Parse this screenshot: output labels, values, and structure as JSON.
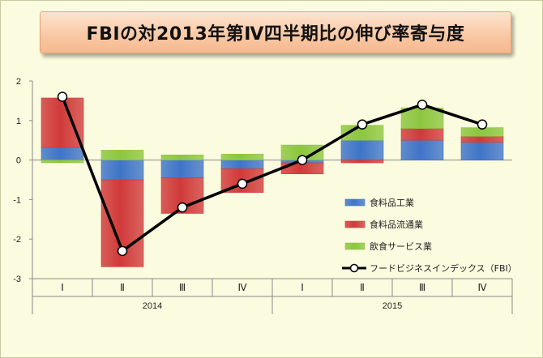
{
  "title": "FBIの対2013年第Ⅳ四半期比の伸び率寄与度",
  "colors": {
    "background": "#fbfbdf",
    "manufacturing": "#3f74c8",
    "distribution": "#d03a3a",
    "food_service": "#8cc63f",
    "line": "#000000"
  },
  "chart_data": {
    "type": "bar",
    "stacked": true,
    "title": "FBIの対2013年第Ⅳ四半期比の伸び率寄与度",
    "categories": [
      "Ⅰ",
      "Ⅱ",
      "Ⅲ",
      "Ⅳ",
      "Ⅰ",
      "Ⅱ",
      "Ⅲ",
      "Ⅳ"
    ],
    "year_groups": [
      {
        "label": "2014",
        "span": 4
      },
      {
        "label": "2015",
        "span": 4
      }
    ],
    "ylim": [
      -3,
      2
    ],
    "yticks": [
      2,
      1,
      0,
      -1,
      -2,
      -3
    ],
    "grid": false,
    "legend_position": "bottom-right",
    "series": [
      {
        "name": "食料品工業",
        "type": "bar",
        "values": [
          0.32,
          -0.5,
          -0.45,
          -0.22,
          -0.07,
          0.5,
          0.5,
          0.45
        ]
      },
      {
        "name": "食料品流通業",
        "type": "bar",
        "values": [
          1.25,
          -2.2,
          -0.9,
          -0.6,
          -0.28,
          -0.07,
          0.3,
          0.15
        ]
      },
      {
        "name": "飲食サービス業",
        "type": "bar",
        "values": [
          -0.07,
          0.25,
          0.13,
          0.15,
          0.38,
          0.38,
          0.52,
          0.22
        ]
      },
      {
        "name": "フードビジネスインデックス（FBI）",
        "type": "line",
        "values": [
          1.6,
          -2.3,
          -1.2,
          -0.6,
          0.0,
          0.9,
          1.4,
          0.9
        ]
      }
    ]
  }
}
